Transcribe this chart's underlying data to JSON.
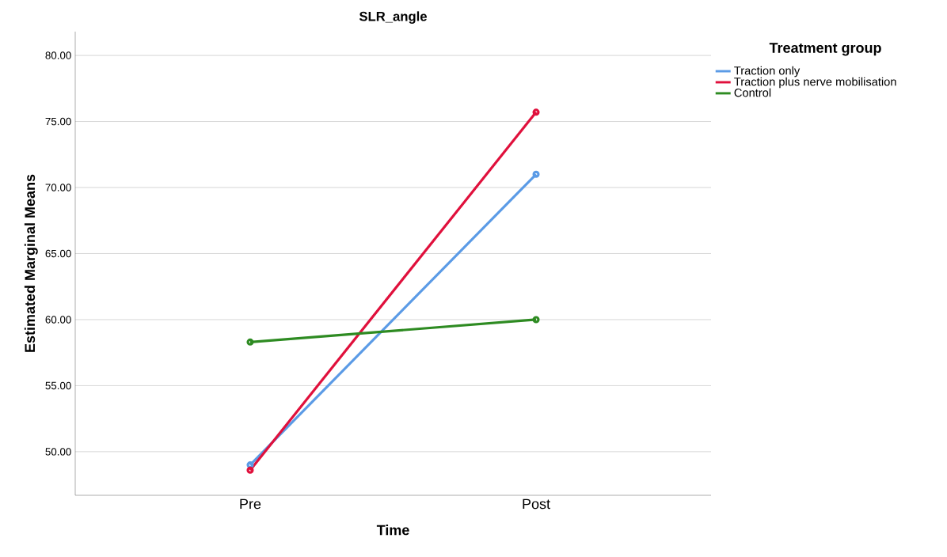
{
  "chart_data": {
    "type": "line",
    "title": "SLR_angle",
    "xlabel": "Time",
    "ylabel": "Estimated Marginal Means",
    "legend_title": "Treatment group",
    "categories": [
      "Pre",
      "Post"
    ],
    "series": [
      {
        "name": "Traction only",
        "color": "#5b9be6",
        "values": [
          49.0,
          71.0
        ]
      },
      {
        "name": "Traction plus nerve mobilisation",
        "color": "#e0103c",
        "values": [
          48.6,
          75.7
        ]
      },
      {
        "name": "Control",
        "color": "#2e8b22",
        "values": [
          58.3,
          60.0
        ]
      }
    ],
    "ylim": [
      46.7,
      81.8
    ],
    "yticks": [
      {
        "value": 50,
        "label": "50.00"
      },
      {
        "value": 55,
        "label": "55.00"
      },
      {
        "value": 60,
        "label": "60.00"
      },
      {
        "value": 65,
        "label": "65.00"
      },
      {
        "value": 70,
        "label": "70.00"
      },
      {
        "value": 75,
        "label": "75.00"
      },
      {
        "value": 80,
        "label": "80.00"
      }
    ],
    "grid": "y",
    "legend": "top right",
    "marker": "circle",
    "line_style": "solid"
  }
}
